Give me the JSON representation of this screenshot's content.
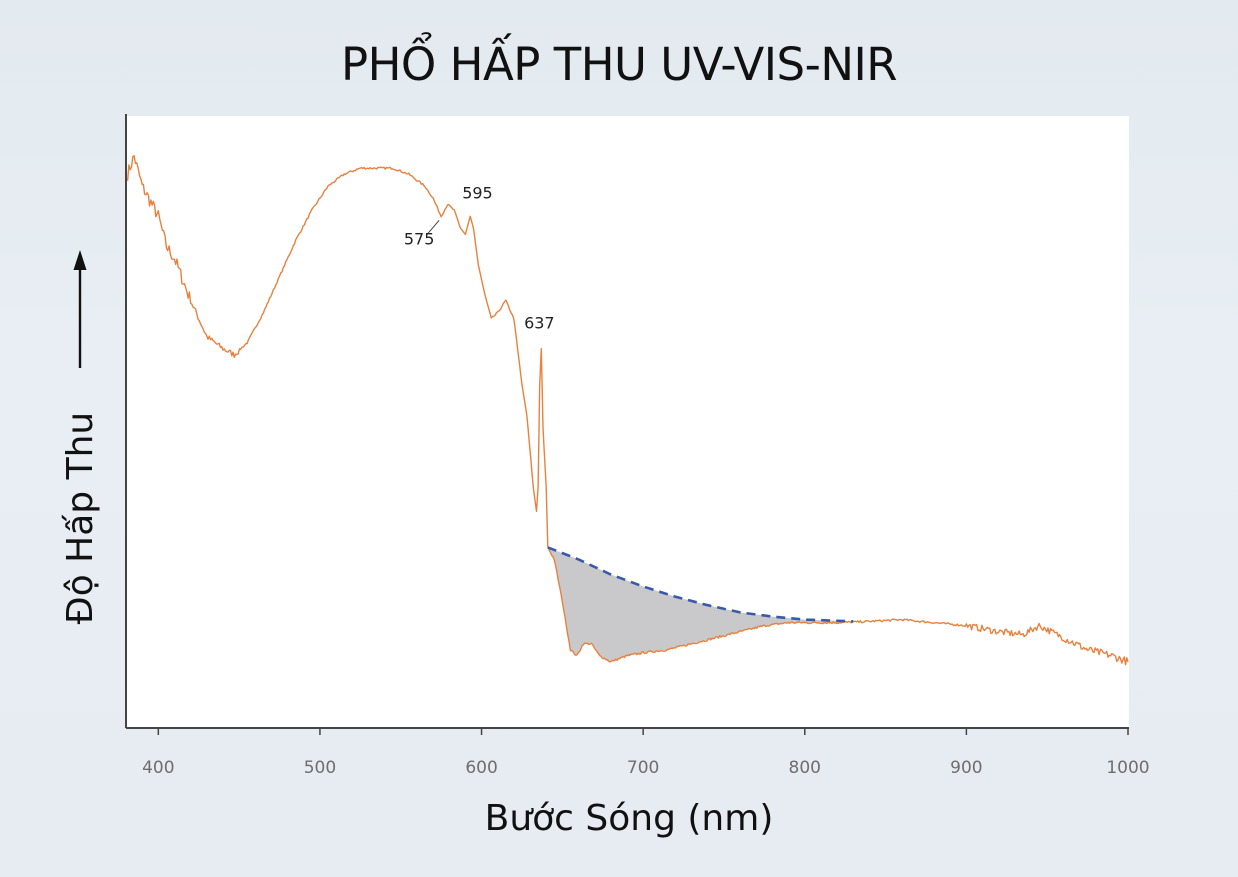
{
  "chart_data": {
    "type": "line",
    "title": "PHỔ HẤP THU UV-VIS-NIR",
    "xlabel": "Bước Sóng (nm)",
    "ylabel": "Độ Hấp Thu",
    "xlim": [
      380,
      1000
    ],
    "ylim": [
      0,
      100
    ],
    "x_ticks": [
      400,
      500,
      600,
      700,
      800,
      900,
      1000
    ],
    "grid": false,
    "legend": "none",
    "colors": {
      "spectrum": "#e8813d",
      "baseline": "#3a5aa8",
      "shaded_area": "#c9c9cb",
      "axis": "#444444"
    },
    "series": [
      {
        "values": [
          [
            381,
            92
          ],
          [
            385,
            95
          ],
          [
            390,
            90
          ],
          [
            400,
            85
          ],
          [
            405,
            80
          ],
          [
            410,
            78
          ],
          [
            420,
            71
          ],
          [
            430,
            65
          ],
          [
            440,
            63
          ],
          [
            447,
            62
          ],
          [
            455,
            64
          ],
          [
            465,
            69
          ],
          [
            475,
            75
          ],
          [
            485,
            81
          ],
          [
            495,
            86
          ],
          [
            505,
            90
          ],
          [
            515,
            92
          ],
          [
            525,
            93
          ],
          [
            535,
            93
          ],
          [
            545,
            93
          ],
          [
            555,
            92
          ],
          [
            565,
            90
          ],
          [
            570,
            88
          ],
          [
            575,
            85
          ],
          [
            579,
            87
          ],
          [
            583,
            86
          ],
          [
            587,
            83
          ],
          [
            590,
            82
          ],
          [
            593,
            85
          ],
          [
            595,
            83
          ],
          [
            598,
            77
          ],
          [
            602,
            72
          ],
          [
            606,
            68
          ],
          [
            610,
            69
          ],
          [
            615,
            71
          ],
          [
            620,
            68
          ],
          [
            625,
            57
          ],
          [
            628,
            52
          ],
          [
            632,
            40
          ],
          [
            634,
            36
          ],
          [
            635,
            40
          ],
          [
            636,
            57
          ],
          [
            637,
            63
          ],
          [
            638,
            50
          ],
          [
            640,
            40
          ],
          [
            641,
            30
          ],
          [
            645,
            28
          ],
          [
            650,
            21
          ],
          [
            655,
            13
          ],
          [
            659,
            12
          ],
          [
            663,
            14
          ],
          [
            668,
            14
          ],
          [
            673,
            12
          ],
          [
            680,
            11
          ],
          [
            690,
            12
          ],
          [
            700,
            12.5
          ],
          [
            715,
            13
          ],
          [
            730,
            14
          ],
          [
            745,
            15
          ],
          [
            760,
            16
          ],
          [
            775,
            17
          ],
          [
            790,
            17.5
          ],
          [
            805,
            17.5
          ],
          [
            820,
            17.5
          ],
          [
            840,
            17.7
          ],
          [
            860,
            18
          ],
          [
            880,
            17.5
          ],
          [
            900,
            17
          ],
          [
            920,
            16
          ],
          [
            935,
            15.5
          ],
          [
            945,
            17
          ],
          [
            960,
            15
          ],
          [
            975,
            13
          ],
          [
            990,
            12
          ],
          [
            1000,
            11
          ]
        ]
      },
      {
        "values": [
          [
            641,
            30
          ],
          [
            660,
            28
          ],
          [
            680,
            25.5
          ],
          [
            700,
            23.5
          ],
          [
            720,
            21.8
          ],
          [
            740,
            20.4
          ],
          [
            760,
            19.2
          ],
          [
            780,
            18.5
          ],
          [
            800,
            18
          ],
          [
            820,
            17.8
          ],
          [
            830,
            17.7
          ]
        ]
      }
    ],
    "annotations": [
      {
        "text": "575",
        "x": 575,
        "y": 85
      },
      {
        "text": "595",
        "x": 595,
        "y": 85
      },
      {
        "text": "637",
        "x": 637,
        "y": 63
      }
    ]
  }
}
